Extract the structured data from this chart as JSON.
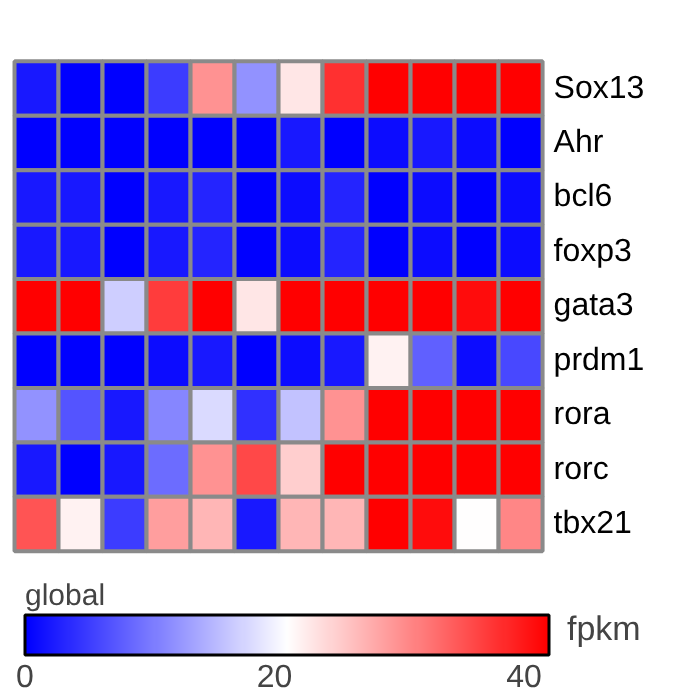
{
  "chart_data": {
    "type": "heatmap",
    "categories": [
      null,
      null,
      null,
      null,
      null,
      null,
      null,
      null,
      null,
      null,
      null,
      null
    ],
    "y_categories": [
      "Sox13",
      "Ahr",
      "bcl6",
      "foxp3",
      "gata3",
      "prdm1",
      "rora",
      "rorc",
      "tbx21"
    ],
    "clim": [
      0,
      42
    ],
    "cticks": [
      0,
      20,
      40
    ],
    "legend_title": "global",
    "clabel": "fpkm",
    "cells": [
      [
        2,
        0,
        0,
        5,
        30,
        12,
        23,
        38,
        42,
        42,
        42,
        42
      ],
      [
        0,
        0,
        0,
        0,
        0,
        0,
        2,
        0,
        1,
        2,
        1,
        0
      ],
      [
        2,
        2,
        0,
        2,
        3,
        0,
        1,
        3,
        0,
        1,
        0,
        1
      ],
      [
        2,
        2,
        0,
        2,
        3,
        0,
        1,
        3,
        0,
        1,
        0,
        1
      ],
      [
        42,
        42,
        17,
        37,
        42,
        23,
        42,
        42,
        42,
        42,
        41,
        42
      ],
      [
        0,
        0,
        0,
        1,
        2,
        0,
        1,
        2,
        22,
        8,
        1,
        6
      ],
      [
        12,
        7,
        2,
        11,
        18,
        4,
        16,
        30,
        42,
        42,
        42,
        42
      ],
      [
        2,
        0,
        2,
        9,
        30,
        36,
        25,
        42,
        42,
        42,
        42,
        42
      ],
      [
        35,
        22,
        5,
        29,
        27,
        2,
        27,
        27,
        42,
        41,
        21,
        31
      ]
    ]
  }
}
